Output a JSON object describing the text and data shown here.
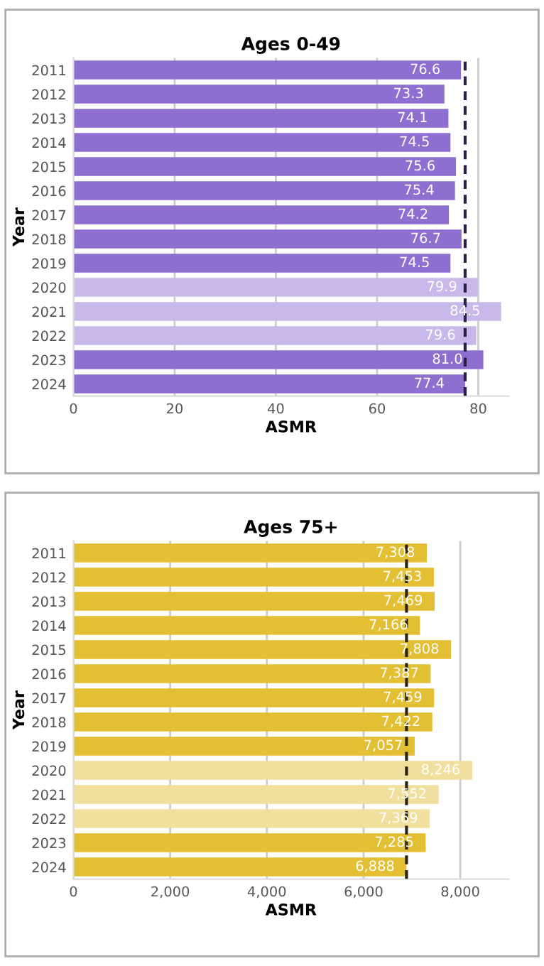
{
  "chart_data": [
    {
      "type": "bar",
      "orientation": "horizontal",
      "title": "Ages 0-49",
      "xlabel": "ASMR",
      "ylabel": "Year",
      "categories": [
        "2011",
        "2012",
        "2013",
        "2014",
        "2015",
        "2016",
        "2017",
        "2018",
        "2019",
        "2020",
        "2021",
        "2022",
        "2023",
        "2024"
      ],
      "values": [
        76.6,
        73.3,
        74.1,
        74.5,
        75.6,
        75.4,
        74.2,
        76.7,
        74.5,
        79.9,
        84.5,
        79.6,
        81.0,
        77.4
      ],
      "value_labels": [
        "76.6",
        "73.3",
        "74.1",
        "74.5",
        "75.6",
        "75.4",
        "74.2",
        "76.7",
        "74.5",
        "79.9",
        "84.5",
        "79.6",
        "81.0",
        "77.4"
      ],
      "colors": [
        "#8e6fd0",
        "#8e6fd0",
        "#8e6fd0",
        "#8e6fd0",
        "#8e6fd0",
        "#8e6fd0",
        "#8e6fd0",
        "#8e6fd0",
        "#8e6fd0",
        "#c9b8ea",
        "#c9b8ea",
        "#c9b8ea",
        "#8e6fd0",
        "#8e6fd0"
      ],
      "xlim": [
        0,
        86
      ],
      "xticks": [
        0,
        20,
        40,
        60,
        80
      ],
      "grid": "x",
      "ref_lines": [
        {
          "axis": "x",
          "value": 77.4,
          "color": "#2a1f4a",
          "line_style": "dashed"
        }
      ]
    },
    {
      "type": "bar",
      "orientation": "horizontal",
      "title": "Ages 75+",
      "xlabel": "ASMR",
      "ylabel": "Year",
      "categories": [
        "2011",
        "2012",
        "2013",
        "2014",
        "2015",
        "2016",
        "2017",
        "2018",
        "2019",
        "2020",
        "2021",
        "2022",
        "2023",
        "2024"
      ],
      "values": [
        7308,
        7453,
        7469,
        7166,
        7808,
        7387,
        7459,
        7422,
        7057,
        8246,
        7552,
        7369,
        7285,
        6888
      ],
      "value_labels": [
        "7,308",
        "7,453",
        "7,469",
        "7,166",
        "7,808",
        "7,387",
        "7,459",
        "7,422",
        "7,057",
        "8,246",
        "7,552",
        "7,369",
        "7,285",
        "6,888"
      ],
      "colors": [
        "#e3bf33",
        "#e3bf33",
        "#e3bf33",
        "#e3bf33",
        "#e3bf33",
        "#e3bf33",
        "#e3bf33",
        "#e3bf33",
        "#e3bf33",
        "#f1df9d",
        "#f1df9d",
        "#f1df9d",
        "#e3bf33",
        "#e3bf33"
      ],
      "xlim": [
        0,
        9000
      ],
      "xticks": [
        {
          "value": 0,
          "label": "0"
        },
        {
          "value": 2000,
          "label": "2,000"
        },
        {
          "value": 4000,
          "label": "4,000"
        },
        {
          "value": 6000,
          "label": "6,000"
        },
        {
          "value": 8000,
          "label": "8,000"
        }
      ],
      "grid": "x",
      "ref_lines": [
        {
          "axis": "x",
          "value": 6888,
          "color": "#2a2410",
          "line_style": "dashed"
        }
      ]
    }
  ]
}
